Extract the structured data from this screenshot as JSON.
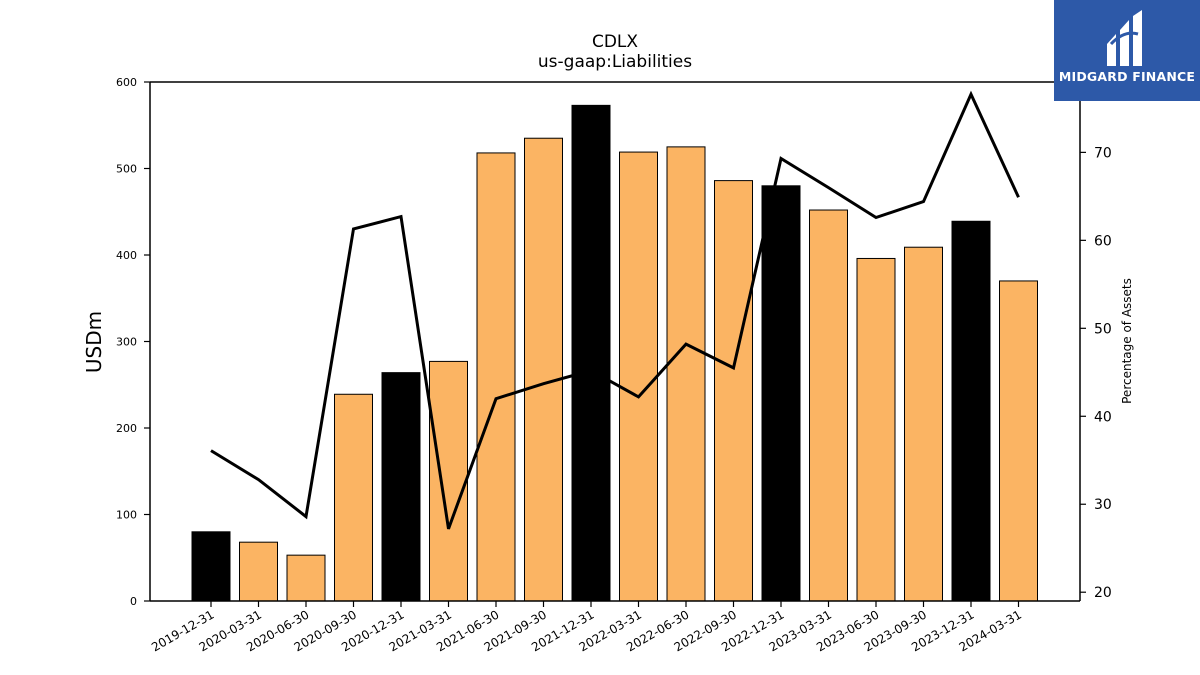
{
  "chart_data": {
    "type": "bar",
    "title": "CDLX",
    "subtitle": "us-gaap:Liabilities",
    "ylabel": "USDm",
    "y2label": "Percentage of Assets",
    "ylim": [
      0,
      600
    ],
    "y2lim": [
      19,
      78
    ],
    "yticks": [
      0,
      100,
      200,
      300,
      400,
      500,
      600
    ],
    "y2ticks": [
      20,
      30,
      40,
      50,
      60,
      70
    ],
    "grid": false,
    "legend": "none",
    "categories": [
      "2019-12-31",
      "2020-03-31",
      "2020-06-30",
      "2020-09-30",
      "2020-12-31",
      "2021-03-31",
      "2021-06-30",
      "2021-09-30",
      "2021-12-31",
      "2022-03-31",
      "2022-06-30",
      "2022-09-30",
      "2022-12-31",
      "2023-03-31",
      "2023-06-30",
      "2023-09-30",
      "2023-12-31",
      "2024-03-31"
    ],
    "series": [
      {
        "type": "bar",
        "axis": "left",
        "values": [
          80,
          68,
          53,
          239,
          264,
          277,
          518,
          535,
          573,
          519,
          525,
          486,
          480,
          452,
          396,
          409,
          439,
          370
        ],
        "bar_colors": [
          "#000000",
          "#fbb463",
          "#fbb463",
          "#fbb463",
          "#000000",
          "#fbb463",
          "#fbb463",
          "#fbb463",
          "#000000",
          "#fbb463",
          "#fbb463",
          "#fbb463",
          "#000000",
          "#fbb463",
          "#fbb463",
          "#fbb463",
          "#000000",
          "#fbb463"
        ]
      },
      {
        "type": "line",
        "axis": "right",
        "color": "#000000",
        "values": [
          36.1,
          32.8,
          28.6,
          61.3,
          62.7,
          27.2,
          42.0,
          43.7,
          45.2,
          42.2,
          48.2,
          45.5,
          69.3,
          66.0,
          62.6,
          64.4,
          76.6,
          64.9
        ]
      }
    ]
  },
  "logo": {
    "text": "MIDGARD FINANCE",
    "bg_color": "#2d59a8"
  }
}
